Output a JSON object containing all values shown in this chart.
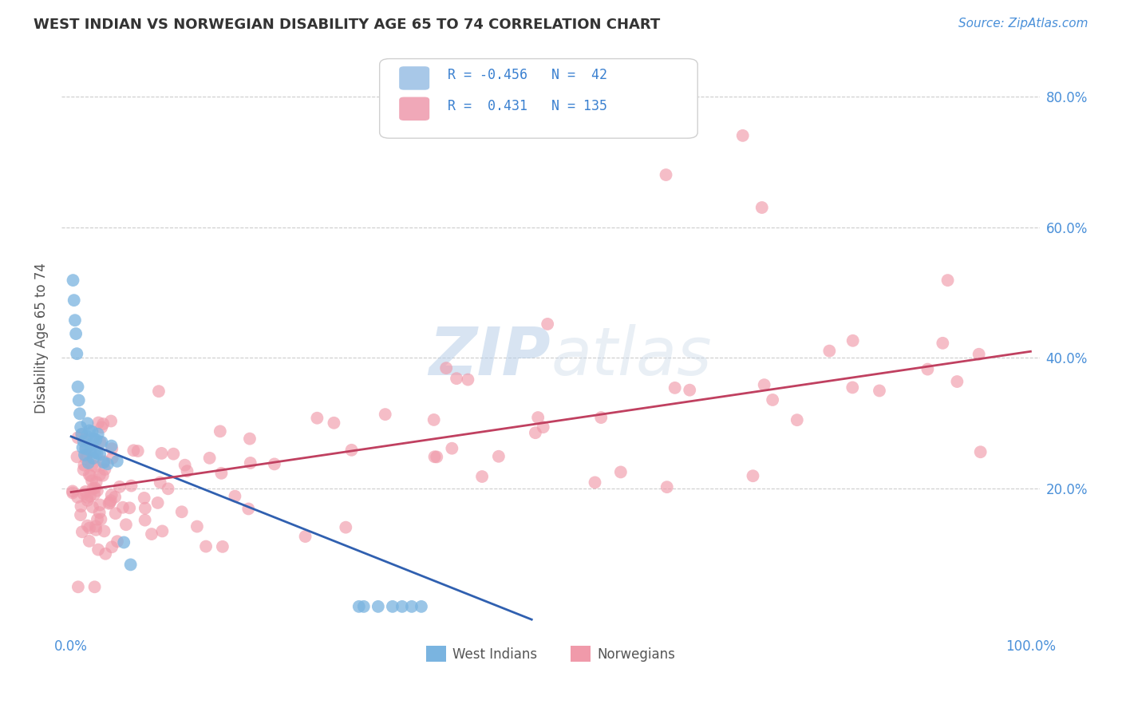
{
  "title": "WEST INDIAN VS NORWEGIAN DISABILITY AGE 65 TO 74 CORRELATION CHART",
  "source_text": "Source: ZipAtlas.com",
  "ylabel": "Disability Age 65 to 74",
  "xlim": [
    -0.01,
    1.01
  ],
  "ylim": [
    -0.02,
    0.88
  ],
  "xtick_vals": [
    0.0,
    0.2,
    0.4,
    0.6,
    0.8,
    1.0
  ],
  "xtick_labels": [
    "0.0%",
    "",
    "",
    "",
    "",
    "100.0%"
  ],
  "ytick_positions": [
    0.2,
    0.4,
    0.6,
    0.8
  ],
  "ytick_labels": [
    "20.0%",
    "40.0%",
    "60.0%",
    "80.0%"
  ],
  "watermark": "ZIPatlas",
  "legend_label1": "West Indians",
  "legend_label2": "Norwegians",
  "west_indian_color": "#7ab4e0",
  "norwegian_color": "#f09aaa",
  "trend_west_indian_color": "#3060b0",
  "trend_norwegian_color": "#c04060",
  "tick_color": "#4a90d9",
  "title_color": "#333333",
  "source_color": "#4a90d9",
  "ylabel_color": "#555555",
  "grid_color": "#cccccc",
  "legend_box_color": "#e8e8e8"
}
